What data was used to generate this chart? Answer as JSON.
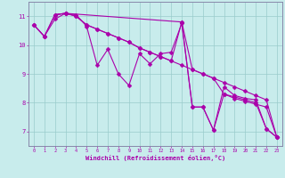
{
  "xlabel": "Windchill (Refroidissement éolien,°C)",
  "bg_color": "#c8ecec",
  "line_color": "#aa00aa",
  "grid_color": "#99cccc",
  "spine_color": "#8888aa",
  "xlim": [
    -0.5,
    23.5
  ],
  "ylim": [
    6.5,
    11.5
  ],
  "xticks": [
    0,
    1,
    2,
    3,
    4,
    5,
    6,
    7,
    8,
    9,
    10,
    11,
    12,
    13,
    14,
    15,
    16,
    17,
    18,
    19,
    20,
    21,
    22,
    23
  ],
  "yticks": [
    7,
    8,
    9,
    10,
    11
  ],
  "lines": [
    {
      "x": [
        0,
        1,
        2,
        3,
        4,
        5,
        6,
        7,
        8,
        9,
        10,
        11,
        12,
        13,
        14,
        15,
        16,
        17,
        18,
        19,
        20,
        21,
        22,
        23
      ],
      "y": [
        10.7,
        10.3,
        10.9,
        11.1,
        11.05,
        10.65,
        9.3,
        9.85,
        9.0,
        8.6,
        9.7,
        9.35,
        9.7,
        9.75,
        10.75,
        7.85,
        7.85,
        7.05,
        8.55,
        8.25,
        8.15,
        8.1,
        7.1,
        6.8
      ]
    },
    {
      "x": [
        0,
        1,
        2,
        3,
        4,
        5,
        6,
        7,
        8,
        9,
        10,
        11,
        12,
        13,
        14,
        15,
        16,
        17,
        18,
        19,
        20,
        21,
        22,
        23
      ],
      "y": [
        10.7,
        10.3,
        11.05,
        11.1,
        11.0,
        10.7,
        10.55,
        10.4,
        10.25,
        10.1,
        9.9,
        9.75,
        9.6,
        9.45,
        9.3,
        9.15,
        9.0,
        8.85,
        8.7,
        8.55,
        8.4,
        8.25,
        8.1,
        6.8
      ]
    },
    {
      "x": [
        0,
        1,
        2,
        3,
        4,
        5,
        6,
        7,
        8,
        9,
        10,
        11,
        12,
        13,
        14,
        15,
        16,
        17,
        18,
        19,
        20,
        21,
        22,
        23
      ],
      "y": [
        10.7,
        10.3,
        11.05,
        11.1,
        11.0,
        10.7,
        10.55,
        10.4,
        10.25,
        10.1,
        9.9,
        9.75,
        9.6,
        9.45,
        10.8,
        9.15,
        9.0,
        8.85,
        8.3,
        8.15,
        8.05,
        7.95,
        7.85,
        6.8
      ]
    },
    {
      "x": [
        2,
        3,
        14,
        15,
        16,
        17,
        18,
        19,
        20,
        21,
        22,
        23
      ],
      "y": [
        11.05,
        11.1,
        10.8,
        7.85,
        7.85,
        7.05,
        8.3,
        8.2,
        8.1,
        8.0,
        7.1,
        6.8
      ]
    }
  ]
}
